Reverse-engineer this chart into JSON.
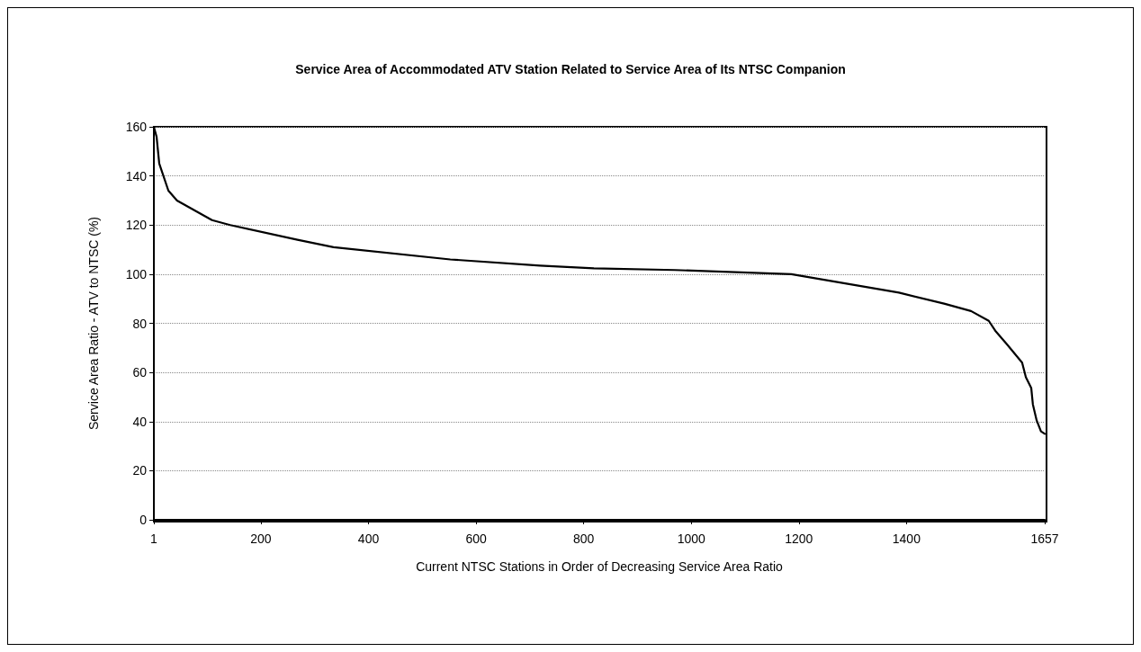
{
  "chart_data": {
    "type": "line",
    "title": "Service Area of Accommodated ATV Station Related to Service Area of Its NTSC Companion",
    "xlabel": "Current NTSC Stations in Order of Decreasing Service Area Ratio",
    "ylabel": "Service Area Ratio - ATV to NTSC (%)",
    "x": [
      1,
      6,
      11,
      28,
      44,
      109,
      143,
      268,
      335,
      552,
      719,
      819,
      969,
      1186,
      1386,
      1470,
      1520,
      1553,
      1565,
      1587,
      1615,
      1622,
      1632,
      1635,
      1642,
      1650,
      1657
    ],
    "series": [
      {
        "color": "#000000",
        "values": [
          160,
          156,
          145,
          134,
          130,
          122,
          120,
          114,
          111,
          106,
          103.5,
          102.4,
          101.7,
          100,
          92.5,
          88,
          85,
          81,
          77,
          71.4,
          64,
          58,
          53.6,
          47,
          40.5,
          36,
          35
        ]
      }
    ],
    "xlim": [
      1,
      1657
    ],
    "xticks": [
      1,
      200,
      400,
      600,
      800,
      1000,
      1200,
      1400,
      1657
    ],
    "ylim": [
      0,
      160
    ],
    "yticks": [
      0,
      20,
      40,
      60,
      80,
      100,
      120,
      140,
      160
    ],
    "grid": "y",
    "marker": "none",
    "line_style": "solid"
  }
}
